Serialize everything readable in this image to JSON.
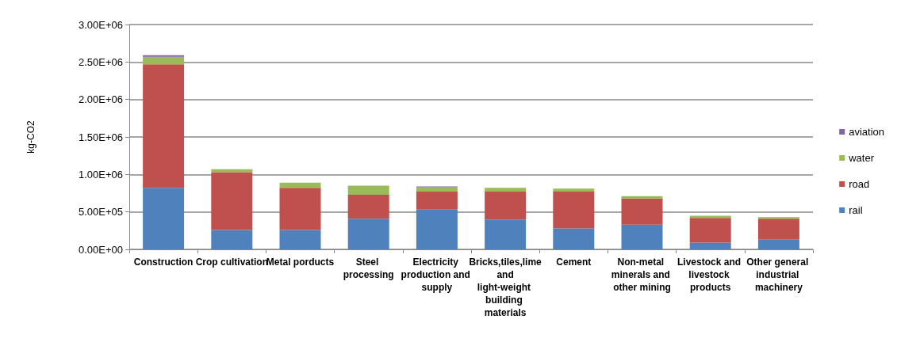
{
  "chart_data": {
    "type": "bar",
    "stacked": true,
    "ylabel": "kg-CO2",
    "categories": [
      "Construction",
      "Crop cultivation",
      "Metal porducts",
      "Steel processing",
      "Electricity production and supply",
      "Bricks,tiles,lime and light-weight building materials",
      "Cement",
      "Non-metal minerals and other mining",
      "Livestock and livestock products",
      "Other general industrial machinery"
    ],
    "series": [
      {
        "name": "rail",
        "color": "#4f81bd",
        "values": [
          820000,
          260000,
          260000,
          410000,
          530000,
          400000,
          280000,
          330000,
          90000,
          130000
        ]
      },
      {
        "name": "road",
        "color": "#c0504d",
        "values": [
          1650000,
          770000,
          560000,
          320000,
          240000,
          370000,
          490000,
          350000,
          330000,
          280000
        ]
      },
      {
        "name": "water",
        "color": "#9bbb59",
        "values": [
          100000,
          40000,
          70000,
          120000,
          60000,
          50000,
          40000,
          30000,
          30000,
          20000
        ]
      },
      {
        "name": "aviation",
        "color": "#8064a2",
        "values": [
          20000,
          null,
          null,
          null,
          10000,
          null,
          null,
          null,
          null,
          null
        ]
      }
    ],
    "ylim": [
      0,
      3000000
    ],
    "yticks": [
      {
        "value": 0,
        "label": "0.00E+00"
      },
      {
        "value": 500000,
        "label": "5.00E+05"
      },
      {
        "value": 1000000,
        "label": "1.00E+06"
      },
      {
        "value": 1500000,
        "label": "1.50E+06"
      },
      {
        "value": 2000000,
        "label": "2.00E+06"
      },
      {
        "value": 2500000,
        "label": "2.50E+06"
      },
      {
        "value": 3000000,
        "label": "3.00E+06"
      }
    ],
    "grid": "y",
    "legend": "right"
  }
}
